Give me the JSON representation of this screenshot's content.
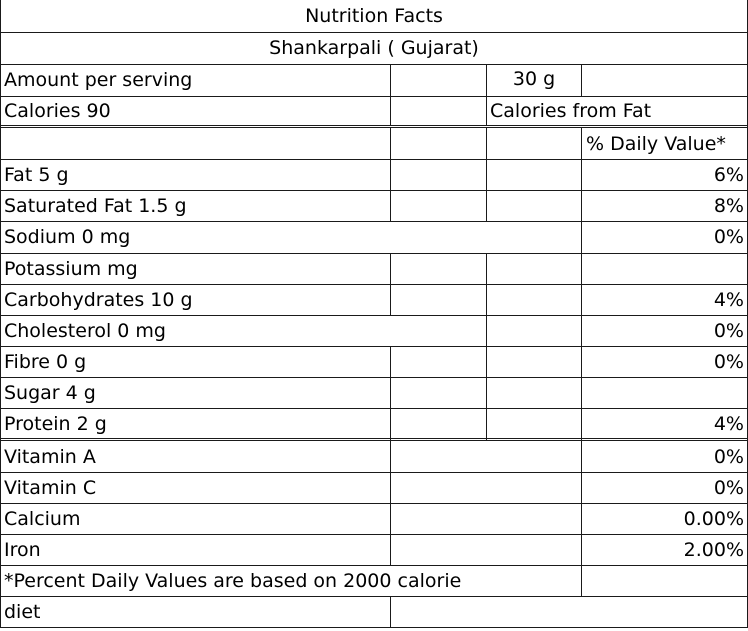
{
  "title": "Nutrition Facts",
  "subtitle": "Shankarpali ( Gujarat)",
  "serving": {
    "label": "Amount per serving",
    "value": "30 g"
  },
  "calories": {
    "label": "Calories 90",
    "from_fat_label": "Calories from Fat"
  },
  "daily_value_header": "% Daily Value*",
  "rows": [
    {
      "name": "Fat 5 g",
      "dv": "6%"
    },
    {
      "name": "Saturated Fat 1.5 g",
      "dv": "8%"
    },
    {
      "name": "Sodium  0 mg",
      "dv": "0%"
    },
    {
      "name": "Potassium  mg",
      "dv": ""
    },
    {
      "name": "Carbohydrates 10 g",
      "dv": "4%"
    },
    {
      "name": "Cholesterol 0 mg",
      "dv": "0%"
    },
    {
      "name": "Fibre 0 g",
      "dv": "0%"
    },
    {
      "name": "Sugar 4 g",
      "dv": ""
    },
    {
      "name": "Protein 2 g",
      "dv": "4%"
    },
    {
      "name": "Vitamin A",
      "dv": "0%"
    },
    {
      "name": "Vitamin C",
      "dv": "0%"
    },
    {
      "name": "Calcium",
      "dv": "0.00%"
    },
    {
      "name": "Iron",
      "dv": "2.00%"
    }
  ],
  "footnote": {
    "line1": "*Percent Daily Values are based on 2000 calorie",
    "line2": "diet"
  }
}
